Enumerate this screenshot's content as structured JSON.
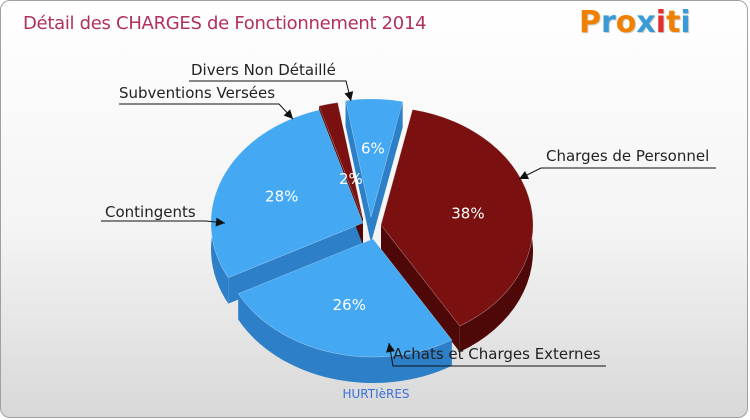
{
  "header": {
    "title": "Détail des CHARGES de Fonctionnement 2014",
    "logo_text": "Proxiti"
  },
  "footer": {
    "commune": "HURTIèRES"
  },
  "colors": {
    "title": "#b03060",
    "blue_top": "#44a8f2",
    "blue_side": "#2d80c8",
    "red_top": "#7a1010",
    "red_side": "#4e0808",
    "logo": [
      "#f08000",
      "#3a9ad8",
      "#f08000",
      "#3a9ad8",
      "#e03030",
      "#f08000",
      "#3a9ad8"
    ]
  },
  "chart_data": {
    "type": "pie",
    "title": "Détail des CHARGES de Fonctionnement 2014",
    "slices": [
      {
        "label": "Charges de Personnel",
        "value": 38,
        "pct_label": "38%",
        "color": "#7a1010"
      },
      {
        "label": "Achats et Charges Externes",
        "value": 26,
        "pct_label": "26%",
        "color": "#44a8f2"
      },
      {
        "label": "Contingents",
        "value": 28,
        "pct_label": "28%",
        "color": "#44a8f2"
      },
      {
        "label": "Subventions Versées",
        "value": 2,
        "pct_label": "2%",
        "color": "#7a1010"
      },
      {
        "label": "Divers Non Détaillé",
        "value": 6,
        "pct_label": "6%",
        "color": "#44a8f2"
      }
    ]
  }
}
